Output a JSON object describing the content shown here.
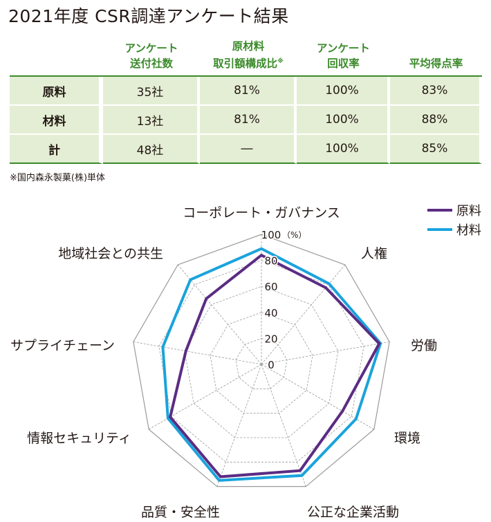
{
  "title": "2021年度 CSR調達アンケート結果",
  "table": {
    "headers": [
      {
        "line1": "",
        "line2": "",
        "note": ""
      },
      {
        "line1": "アンケート",
        "line2": "送付社数",
        "note": ""
      },
      {
        "line1": "原材料",
        "line2": "取引額構成比",
        "note": "※"
      },
      {
        "line1": "アンケート",
        "line2": "回収率",
        "note": ""
      },
      {
        "line1": "",
        "line2": "平均得点率",
        "note": ""
      }
    ],
    "rows": [
      [
        "原料",
        "35社",
        "81%",
        "100%",
        "83%"
      ],
      [
        "材料",
        "13社",
        "81%",
        "100%",
        "88%"
      ],
      [
        "計",
        "48社",
        "―",
        "100%",
        "85%"
      ]
    ],
    "footnote": "※国内森永製菓(株)単体"
  },
  "chart_data": {
    "type": "radar",
    "title": "",
    "axes": [
      "コーポレート・ガバナンス",
      "人権",
      "労働",
      "環境",
      "公正な企業活動",
      "品質・安全性",
      "情報セキュリティ",
      "サプライチェーン",
      "地域社会との共生"
    ],
    "ticks": [
      "0",
      "20",
      "40",
      "60",
      "80",
      "100"
    ],
    "tick_values": [
      0,
      20,
      40,
      60,
      80,
      100
    ],
    "unit_label": "（%）",
    "range": [
      0,
      100
    ],
    "grid": true,
    "legend_position": "top-right",
    "series": [
      {
        "name": "原料",
        "color": "#5b2c83",
        "values": [
          84,
          77,
          92,
          72,
          87,
          92,
          81,
          59,
          66
        ]
      },
      {
        "name": "材料",
        "color": "#1aa3dc",
        "values": [
          89,
          81,
          93,
          84,
          91,
          95,
          83,
          77,
          85
        ]
      }
    ]
  }
}
